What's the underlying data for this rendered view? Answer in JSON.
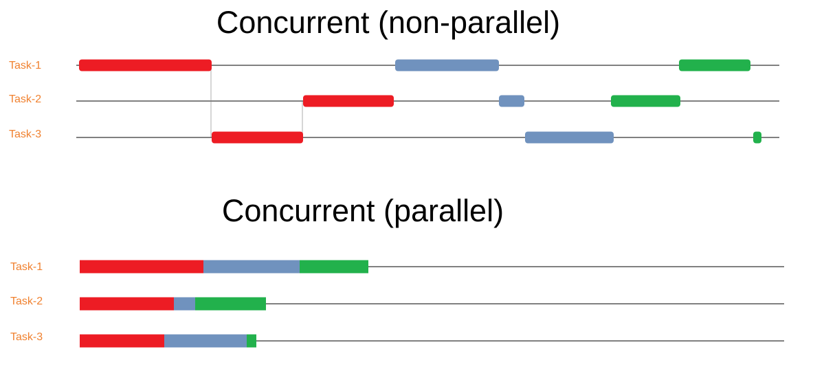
{
  "colors": {
    "red": "#ed1c24",
    "blue": "#7092be",
    "green": "#22b14c",
    "label": "#f0812f",
    "timeline": "#808080"
  },
  "sections": [
    {
      "title": "Concurrent (non-parallel)",
      "tasks": [
        {
          "label": "Task-1",
          "segments": [
            {
              "color": "red",
              "start": 0.0,
              "end": 19.3
            },
            {
              "color": "blue",
              "start": 46.0,
              "end": 61.1
            },
            {
              "color": "green",
              "start": 87.3,
              "end": 97.7
            }
          ]
        },
        {
          "label": "Task-2",
          "segments": [
            {
              "color": "red",
              "start": 32.6,
              "end": 45.8
            },
            {
              "color": "blue",
              "start": 61.1,
              "end": 64.8
            },
            {
              "color": "green",
              "start": 77.4,
              "end": 87.5
            }
          ]
        },
        {
          "label": "Task-3",
          "segments": [
            {
              "color": "red",
              "start": 19.3,
              "end": 32.6
            },
            {
              "color": "blue",
              "start": 64.9,
              "end": 77.8
            },
            {
              "color": "green",
              "start": 98.1,
              "end": 99.3
            }
          ]
        }
      ]
    },
    {
      "title": "Concurrent (parallel)",
      "tasks": [
        {
          "label": "Task-1",
          "segments": [
            {
              "color": "red",
              "start": 0.0,
              "end": 18.0
            },
            {
              "color": "blue",
              "start": 18.0,
              "end": 32.0
            },
            {
              "color": "green",
              "start": 32.0,
              "end": 42.0
            }
          ]
        },
        {
          "label": "Task-2",
          "segments": [
            {
              "color": "red",
              "start": 0.0,
              "end": 13.7
            },
            {
              "color": "blue",
              "start": 13.7,
              "end": 16.8
            },
            {
              "color": "green",
              "start": 16.8,
              "end": 27.1
            }
          ]
        },
        {
          "label": "Task-3",
          "segments": [
            {
              "color": "red",
              "start": 0.0,
              "end": 12.3
            },
            {
              "color": "blue",
              "start": 12.3,
              "end": 24.3
            },
            {
              "color": "green",
              "start": 24.3,
              "end": 25.7
            }
          ]
        }
      ]
    }
  ]
}
